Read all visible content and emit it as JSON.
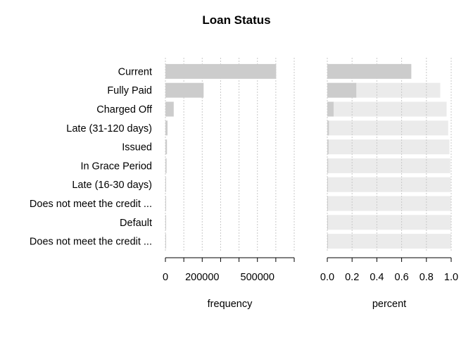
{
  "chart_data": {
    "type": "bar",
    "title": "Loan Status",
    "categories": [
      "Current",
      "Fully Paid",
      "Charged Off",
      "Late (31-120 days)",
      "Issued",
      "In Grace Period",
      "Late (16-30 days)",
      "Does not meet the credit ...",
      "Default",
      "Does not meet the credit ..."
    ],
    "panels": [
      {
        "name": "frequency",
        "xlabel": "frequency",
        "xlim": [
          0,
          700000
        ],
        "ticks": [
          0,
          100000,
          200000,
          300000,
          400000,
          500000,
          600000,
          700000
        ],
        "tick_labels": [
          "0",
          "",
          "200000",
          "",
          "",
          "500000",
          "",
          ""
        ],
        "values": [
          601800,
          207700,
          45200,
          11600,
          8500,
          6300,
          2400,
          1990,
          1220,
          760
        ]
      },
      {
        "name": "percent",
        "xlabel": "percent",
        "xlim": [
          0,
          1
        ],
        "ticks": [
          0,
          0.2,
          0.4,
          0.6,
          0.8,
          1.0
        ],
        "tick_labels": [
          "0.0",
          "0.2",
          "0.4",
          "0.6",
          "0.8",
          "1.0"
        ],
        "values": [
          0.678,
          0.234,
          0.051,
          0.013,
          0.01,
          0.007,
          0.003,
          0.002,
          0.001,
          0.001
        ],
        "cumulative": [
          0.678,
          0.912,
          0.963,
          0.976,
          0.986,
          0.993,
          0.996,
          0.998,
          0.999,
          1.0
        ]
      }
    ],
    "grid": true,
    "colors": {
      "bar": "#cccccc",
      "cumulative_bar": "#ebebeb",
      "grid": "#c8c8c8",
      "axis": "#000000"
    }
  }
}
